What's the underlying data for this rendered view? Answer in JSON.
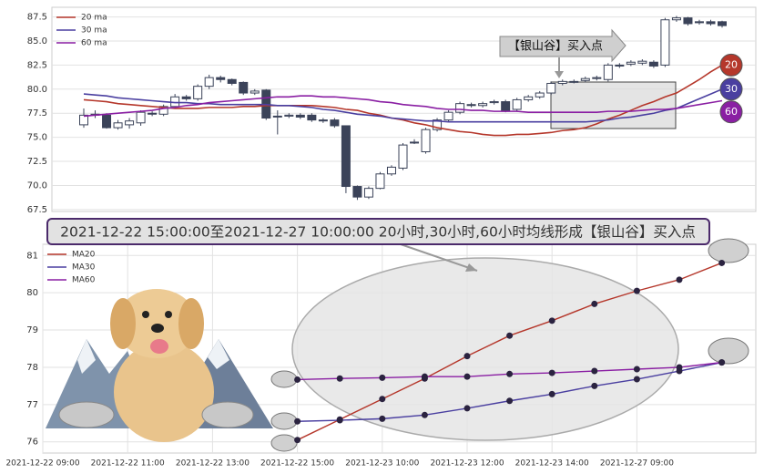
{
  "banner": "2021-12-22 15:00:00至2021-12-27 10:00:00 20小时,30小时,60小时均线形成【银山谷】买入点",
  "chart_data": [
    {
      "type": "candlestick",
      "open": [
        76.3,
        77.3,
        77.3,
        76.0,
        76.3,
        76.5,
        77.5,
        77.4,
        78.2,
        79.2,
        79.0,
        80.3,
        81.2,
        81.0,
        80.7,
        79.6,
        79.9,
        77.2,
        77.2,
        77.3,
        77.3,
        76.8,
        76.8,
        76.2,
        69.9,
        68.8,
        69.7,
        71.2,
        71.8,
        74.5,
        73.5,
        75.8,
        76.8,
        77.6,
        78.4,
        78.3,
        78.6,
        78.7,
        77.9,
        78.9,
        79.2,
        79.6,
        80.6,
        80.8,
        80.9,
        81.1,
        81.0,
        82.5,
        82.6,
        82.7,
        82.8,
        82.5,
        87.2,
        87.4,
        87.0,
        87.0,
        87.0
      ],
      "high": [
        78.0,
        77.8,
        77.5,
        76.8,
        77.0,
        77.8,
        77.7,
        78.4,
        79.5,
        79.4,
        80.5,
        81.5,
        81.4,
        81.1,
        80.8,
        80.0,
        80.0,
        77.8,
        77.5,
        77.5,
        77.5,
        77.0,
        77.0,
        76.2,
        70.0,
        69.9,
        71.4,
        72.1,
        74.4,
        74.8,
        76.0,
        77.0,
        77.8,
        78.7,
        78.6,
        78.7,
        78.9,
        78.9,
        79.1,
        79.4,
        79.8,
        80.8,
        81.0,
        81.0,
        81.3,
        81.4,
        82.7,
        82.7,
        83.0,
        83.1,
        83.0,
        87.4,
        87.6,
        87.5,
        87.2,
        87.2,
        87.1
      ],
      "low": [
        76.0,
        77.0,
        75.9,
        75.8,
        75.9,
        76.2,
        77.2,
        77.2,
        78.0,
        78.8,
        78.8,
        80.0,
        80.7,
        80.4,
        79.4,
        79.4,
        76.8,
        75.3,
        77.0,
        76.9,
        76.6,
        76.5,
        76.0,
        69.2,
        68.5,
        68.6,
        69.6,
        71.0,
        71.6,
        74.3,
        73.3,
        75.6,
        76.6,
        77.4,
        78.1,
        78.1,
        78.4,
        77.6,
        77.7,
        78.7,
        79.0,
        79.4,
        80.4,
        80.6,
        80.7,
        80.9,
        80.8,
        82.2,
        82.4,
        82.5,
        82.2,
        82.3,
        87.0,
        86.6,
        86.7,
        86.6,
        86.4
      ],
      "close": [
        77.3,
        77.4,
        76.0,
        76.5,
        76.7,
        77.6,
        77.4,
        78.2,
        79.2,
        79.0,
        80.3,
        81.2,
        81.0,
        80.6,
        79.6,
        79.8,
        77.0,
        77.2,
        77.3,
        77.1,
        76.8,
        76.7,
        76.2,
        69.9,
        68.8,
        69.7,
        71.2,
        71.9,
        74.2,
        74.5,
        75.8,
        76.8,
        77.6,
        78.5,
        78.3,
        78.5,
        78.7,
        77.8,
        78.9,
        79.2,
        79.6,
        80.6,
        80.8,
        80.8,
        81.1,
        81.2,
        82.5,
        82.4,
        82.8,
        82.9,
        82.4,
        87.2,
        87.4,
        86.8,
        86.9,
        86.8,
        86.6
      ],
      "up_color": "#ffffff",
      "down_color": "#3b4359",
      "edge_color": "#3b4359",
      "series": [
        {
          "name": "20 ma",
          "color": "#b5372b",
          "values": [
            78.9,
            78.8,
            78.7,
            78.5,
            78.4,
            78.3,
            78.2,
            78.1,
            78.0,
            78.0,
            78.0,
            78.1,
            78.1,
            78.1,
            78.2,
            78.2,
            78.3,
            78.3,
            78.3,
            78.3,
            78.3,
            78.2,
            78.1,
            77.9,
            77.8,
            77.5,
            77.3,
            77.0,
            76.8,
            76.5,
            76.3,
            76.0,
            75.8,
            75.6,
            75.5,
            75.3,
            75.2,
            75.2,
            75.3,
            75.3,
            75.4,
            75.5,
            75.7,
            75.8,
            76.0,
            76.4,
            76.9,
            77.3,
            77.8,
            78.3,
            78.7,
            79.2,
            79.6,
            80.3,
            81.0,
            81.8,
            82.5
          ]
        },
        {
          "name": "30 ma",
          "color": "#4a3fa0",
          "values": [
            79.5,
            79.4,
            79.3,
            79.1,
            79.0,
            78.9,
            78.8,
            78.7,
            78.6,
            78.6,
            78.5,
            78.5,
            78.4,
            78.4,
            78.4,
            78.4,
            78.4,
            78.3,
            78.3,
            78.2,
            78.1,
            77.9,
            77.8,
            77.6,
            77.4,
            77.3,
            77.2,
            77.0,
            76.9,
            76.8,
            76.7,
            76.7,
            76.6,
            76.6,
            76.6,
            76.6,
            76.6,
            76.6,
            76.6,
            76.6,
            76.6,
            76.6,
            76.6,
            76.6,
            76.6,
            76.7,
            76.8,
            77.0,
            77.1,
            77.3,
            77.5,
            77.8,
            78.0,
            78.5,
            79.0,
            79.5,
            80.0
          ]
        },
        {
          "name": "60 ma",
          "color": "#8a1fa3",
          "values": [
            77.2,
            77.3,
            77.4,
            77.5,
            77.6,
            77.7,
            77.8,
            78.0,
            78.1,
            78.3,
            78.4,
            78.6,
            78.7,
            78.8,
            78.9,
            79.0,
            79.1,
            79.2,
            79.2,
            79.3,
            79.3,
            79.2,
            79.2,
            79.1,
            79.0,
            78.9,
            78.7,
            78.6,
            78.4,
            78.3,
            78.2,
            78.0,
            77.9,
            77.9,
            77.8,
            77.8,
            77.7,
            77.7,
            77.7,
            77.6,
            77.6,
            77.6,
            77.6,
            77.6,
            77.6,
            77.6,
            77.7,
            77.7,
            77.7,
            77.8,
            77.9,
            77.9,
            78.0,
            78.2,
            78.4,
            78.6,
            78.8
          ]
        }
      ],
      "end_labels": [
        "20",
        "30",
        "60"
      ],
      "annotation": "【银山谷】买入点",
      "ylim": [
        67.3,
        88.5
      ],
      "yticks": [
        67.5,
        {
          "value": 70,
          "label": "70.0"
        },
        72.5,
        {
          "value": 75,
          "label": "75.0"
        },
        77.5,
        {
          "value": 80,
          "label": "80.0"
        },
        82.5,
        {
          "value": 85,
          "label": "85.0"
        },
        87.5
      ],
      "grid": true,
      "legend": "upper left"
    },
    {
      "type": "line",
      "categories": [
        "2021-12-22 09:00",
        null,
        "2021-12-22 11:00",
        null,
        "2021-12-22 13:00",
        null,
        "2021-12-22 15:00",
        null,
        "2021-12-23 10:00",
        null,
        "2021-12-23 12:00",
        null,
        "2021-12-23 14:00",
        null,
        "2021-12-27 09:00",
        null,
        null
      ],
      "series": [
        {
          "name": "MA20",
          "color": "#b5372b",
          "values": [
            null,
            null,
            null,
            null,
            null,
            null,
            76.05,
            76.6,
            77.15,
            77.7,
            78.3,
            78.85,
            79.25,
            79.7,
            80.05,
            80.35,
            80.8
          ]
        },
        {
          "name": "MA30",
          "color": "#4a3fa0",
          "values": [
            null,
            null,
            null,
            null,
            null,
            null,
            76.55,
            76.58,
            76.62,
            76.72,
            76.9,
            77.1,
            77.28,
            77.5,
            77.68,
            77.9,
            78.13
          ]
        },
        {
          "name": "MA60",
          "color": "#8a1fa3",
          "values": [
            null,
            null,
            null,
            null,
            null,
            null,
            77.67,
            77.7,
            77.72,
            77.75,
            77.75,
            77.82,
            77.85,
            77.9,
            77.95,
            78.0,
            78.13
          ]
        }
      ],
      "marker_color": "#2b2340",
      "ylim": [
        75.7,
        81.3
      ],
      "yticks": [
        76,
        77,
        78,
        79,
        80,
        81
      ],
      "grid": true,
      "legend": "upper left"
    }
  ]
}
